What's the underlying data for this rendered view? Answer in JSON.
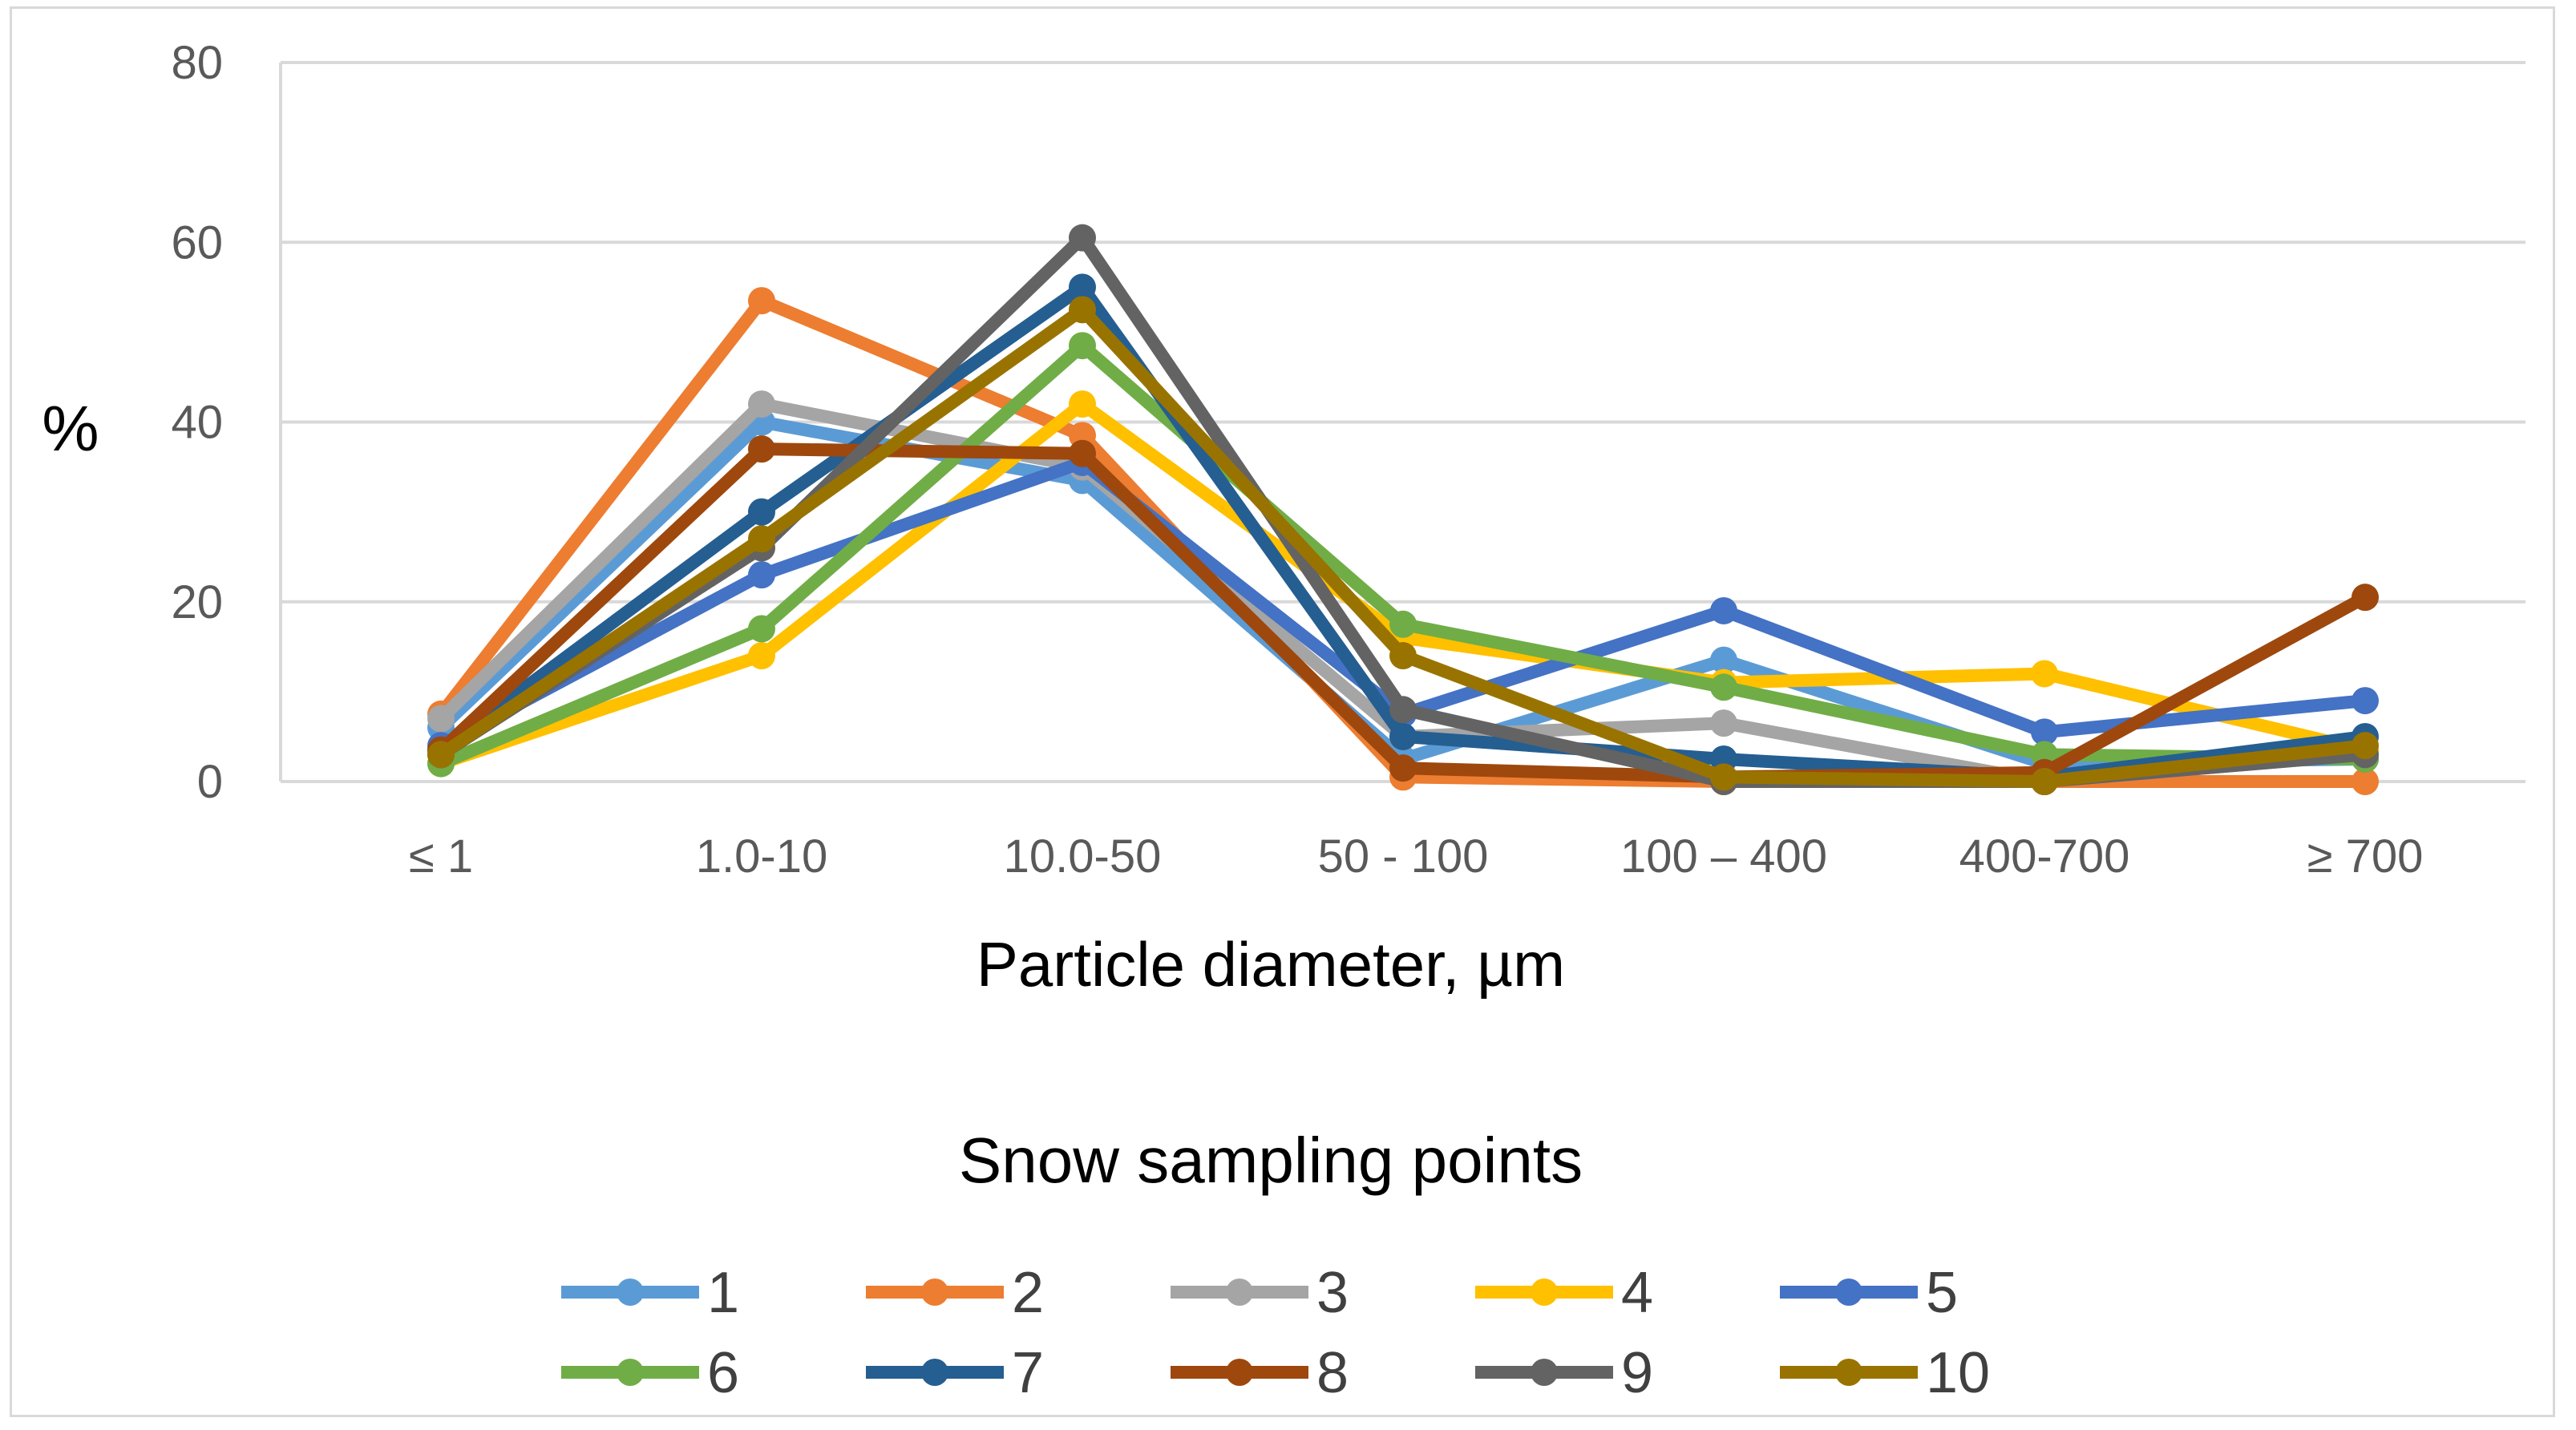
{
  "chart_data": {
    "type": "line",
    "title": "",
    "xlabel": "Particle diameter, µm",
    "ylabel": "%",
    "ylim": [
      0,
      80
    ],
    "yticks": [
      0,
      20,
      40,
      60,
      80
    ],
    "grid": true,
    "legend_title": "Snow sampling points",
    "legend_position": "bottom",
    "categories": [
      "≤ 1",
      "1.0-10",
      "10.0-50",
      "50 - 100",
      "100 – 400",
      "400-700",
      "≥ 700"
    ],
    "series": [
      {
        "name": "1",
        "color": "#5b9bd5",
        "values": [
          6,
          40,
          33.5,
          2.5,
          13.5,
          2,
          2.5
        ]
      },
      {
        "name": "2",
        "color": "#ed7d31",
        "values": [
          7.5,
          53.5,
          38.5,
          0.5,
          0,
          0,
          0
        ]
      },
      {
        "name": "3",
        "color": "#a5a5a5",
        "values": [
          7,
          42,
          35,
          5,
          6.5,
          0,
          3
        ]
      },
      {
        "name": "4",
        "color": "#ffc000",
        "values": [
          2,
          14,
          42,
          16,
          11,
          12,
          3.5
        ]
      },
      {
        "name": "5",
        "color": "#4472c4",
        "values": [
          4,
          23,
          35.5,
          7.5,
          19,
          5.5,
          9
        ]
      },
      {
        "name": "6",
        "color": "#70ad47",
        "values": [
          2,
          17,
          48.5,
          17.5,
          10.5,
          3,
          2.5
        ]
      },
      {
        "name": "7",
        "color": "#255e91",
        "values": [
          3.5,
          30,
          55,
          5,
          2.5,
          0.5,
          5
        ]
      },
      {
        "name": "8",
        "color": "#9e480e",
        "values": [
          3.5,
          37,
          36.5,
          1.5,
          0.5,
          1,
          20.5
        ]
      },
      {
        "name": "9",
        "color": "#636363",
        "values": [
          3,
          26,
          60.5,
          8,
          0,
          0,
          3
        ]
      },
      {
        "name": "10",
        "color": "#997300",
        "values": [
          3,
          27,
          52.5,
          14,
          0.5,
          0,
          4
        ]
      }
    ]
  }
}
